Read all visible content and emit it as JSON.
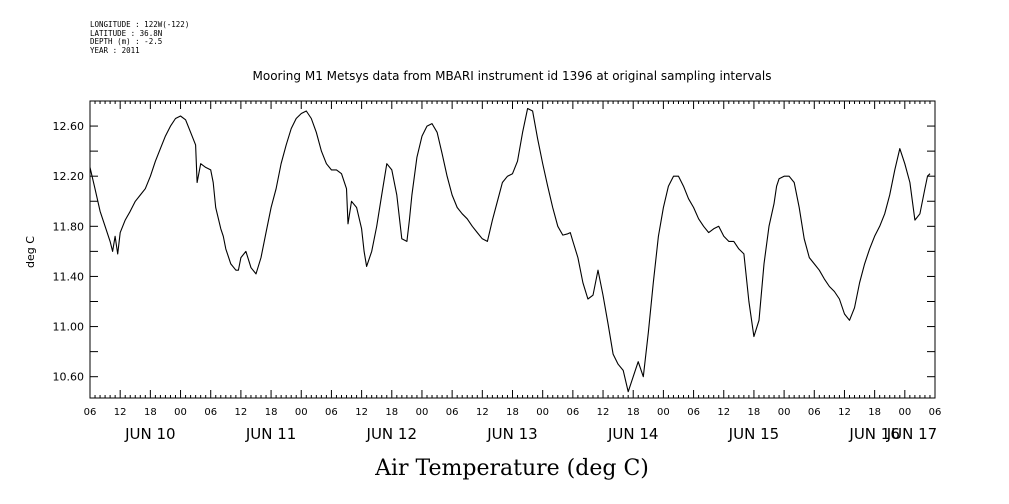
{
  "header": {
    "longitude": "LONGITUDE : 122W(-122)",
    "latitude": "LATITUDE : 36.8N",
    "depth": "DEPTH (m) : -2.5",
    "year": "YEAR : 2011"
  },
  "chart_data": {
    "type": "line",
    "title": "Mooring M1 Metsys data from MBARI instrument id 1396 at original sampling intervals",
    "ylabel": "deg C",
    "xlabel": "Air Temperature (deg C)",
    "ylim": [
      10.43,
      12.8
    ],
    "xlim": [
      0,
      168
    ],
    "x_units": "hours since JUN 10 06:00 (2011)",
    "y_ticks": [
      10.6,
      11.0,
      11.4,
      11.8,
      12.2,
      12.6
    ],
    "y_tick_labels": [
      "10.60",
      "11.00",
      "11.40",
      "11.80",
      "12.20",
      "12.60"
    ],
    "x_hour_labels": [
      "06",
      "12",
      "18",
      "00",
      "06",
      "12",
      "18",
      "00",
      "06",
      "12",
      "18",
      "00",
      "06",
      "12",
      "18",
      "00",
      "06",
      "12",
      "18",
      "00",
      "06",
      "12",
      "18",
      "00",
      "06",
      "12",
      "18",
      "00",
      "06"
    ],
    "x_day_labels": [
      {
        "label": "JUN 10",
        "hour": 12
      },
      {
        "label": "JUN 11",
        "hour": 36
      },
      {
        "label": "JUN 12",
        "hour": 60
      },
      {
        "label": "JUN 13",
        "hour": 84
      },
      {
        "label": "JUN 14",
        "hour": 108
      },
      {
        "label": "JUN 15",
        "hour": 132
      },
      {
        "label": "JUN 16",
        "hour": 156
      },
      {
        "label": "JUN 17",
        "hour": 180
      }
    ],
    "series": [
      {
        "color": "#000000",
        "x": [
          0,
          1,
          2,
          3,
          4,
          4.5,
          5,
          5.5,
          6,
          7,
          8,
          9,
          10,
          11,
          12,
          13,
          14,
          15,
          16,
          17,
          18,
          19,
          20,
          21,
          21.3,
          22,
          23,
          24,
          24.5,
          25,
          26,
          26.5,
          27,
          28,
          29,
          29.5,
          30,
          31,
          32,
          33,
          34,
          35,
          36,
          37,
          38,
          39,
          40,
          41,
          42,
          43,
          44,
          45,
          46,
          47,
          48,
          49,
          50,
          51,
          51.3,
          52,
          53,
          54,
          54.5,
          55,
          56,
          57,
          58,
          59,
          60,
          61,
          62,
          63,
          63.5,
          64,
          65,
          66,
          67,
          68,
          69,
          70,
          71,
          72,
          73,
          74,
          75,
          76,
          77,
          78,
          79,
          80,
          81,
          82,
          83,
          84,
          85,
          86,
          87,
          88,
          89,
          90,
          91,
          92,
          93,
          94,
          95,
          95.5,
          96,
          97,
          98,
          99,
          100,
          101,
          102,
          103,
          104,
          105,
          106,
          107,
          108,
          109,
          110,
          111,
          112,
          113,
          114,
          115,
          116,
          117,
          118,
          119,
          120,
          121,
          122,
          123,
          124,
          125,
          126,
          127,
          128,
          129,
          130,
          131,
          132,
          133,
          134,
          135,
          136,
          136.5,
          137,
          138,
          139,
          140,
          141,
          142,
          143,
          144,
          145,
          146,
          147,
          148,
          149,
          150,
          151,
          152,
          153,
          154,
          155,
          156,
          157,
          158,
          159,
          160,
          161,
          162,
          163,
          163.5,
          164,
          165,
          166,
          166.5,
          167
        ],
        "y": [
          12.27,
          12.1,
          11.92,
          11.8,
          11.68,
          11.6,
          11.72,
          11.58,
          11.75,
          11.85,
          11.92,
          12.0,
          12.05,
          12.1,
          12.2,
          12.32,
          12.42,
          12.52,
          12.6,
          12.66,
          12.68,
          12.65,
          12.55,
          12.45,
          12.15,
          12.3,
          12.27,
          12.25,
          12.15,
          11.95,
          11.78,
          11.72,
          11.62,
          11.5,
          11.45,
          11.45,
          11.55,
          11.6,
          11.47,
          11.42,
          11.55,
          11.75,
          11.95,
          12.1,
          12.3,
          12.45,
          12.58,
          12.66,
          12.7,
          12.72,
          12.66,
          12.55,
          12.4,
          12.3,
          12.25,
          12.25,
          12.22,
          12.1,
          11.82,
          12.0,
          11.95,
          11.78,
          11.6,
          11.48,
          11.6,
          11.8,
          12.05,
          12.3,
          12.25,
          12.05,
          11.7,
          11.68,
          11.85,
          12.05,
          12.35,
          12.52,
          12.6,
          12.62,
          12.55,
          12.38,
          12.2,
          12.05,
          11.95,
          11.9,
          11.86,
          11.8,
          11.75,
          11.7,
          11.68,
          11.85,
          12.0,
          12.15,
          12.2,
          12.22,
          12.32,
          12.55,
          12.74,
          12.72,
          12.5,
          12.3,
          12.12,
          11.95,
          11.8,
          11.73,
          11.74,
          11.75,
          11.68,
          11.55,
          11.35,
          11.22,
          11.25,
          11.45,
          11.25,
          11.02,
          10.78,
          10.7,
          10.65,
          10.48,
          10.6,
          10.72,
          10.6,
          10.95,
          11.35,
          11.72,
          11.95,
          12.12,
          12.2,
          12.2,
          12.12,
          12.02,
          11.95,
          11.86,
          11.8,
          11.75,
          11.78,
          11.8,
          11.72,
          11.68,
          11.68,
          11.62,
          11.58,
          11.2,
          10.92,
          11.05,
          11.5,
          11.8,
          11.98,
          12.12,
          12.18,
          12.2,
          12.2,
          12.15,
          11.95,
          11.7,
          11.55,
          11.5,
          11.45,
          11.38,
          11.32,
          11.28,
          11.22,
          11.1,
          11.05,
          11.15,
          11.35,
          11.5,
          11.62,
          11.72,
          11.8,
          11.9,
          12.05,
          12.25,
          12.42,
          12.3,
          12.15,
          12.0,
          11.85,
          11.9,
          12.1,
          12.2,
          12.22
        ]
      }
    ]
  }
}
